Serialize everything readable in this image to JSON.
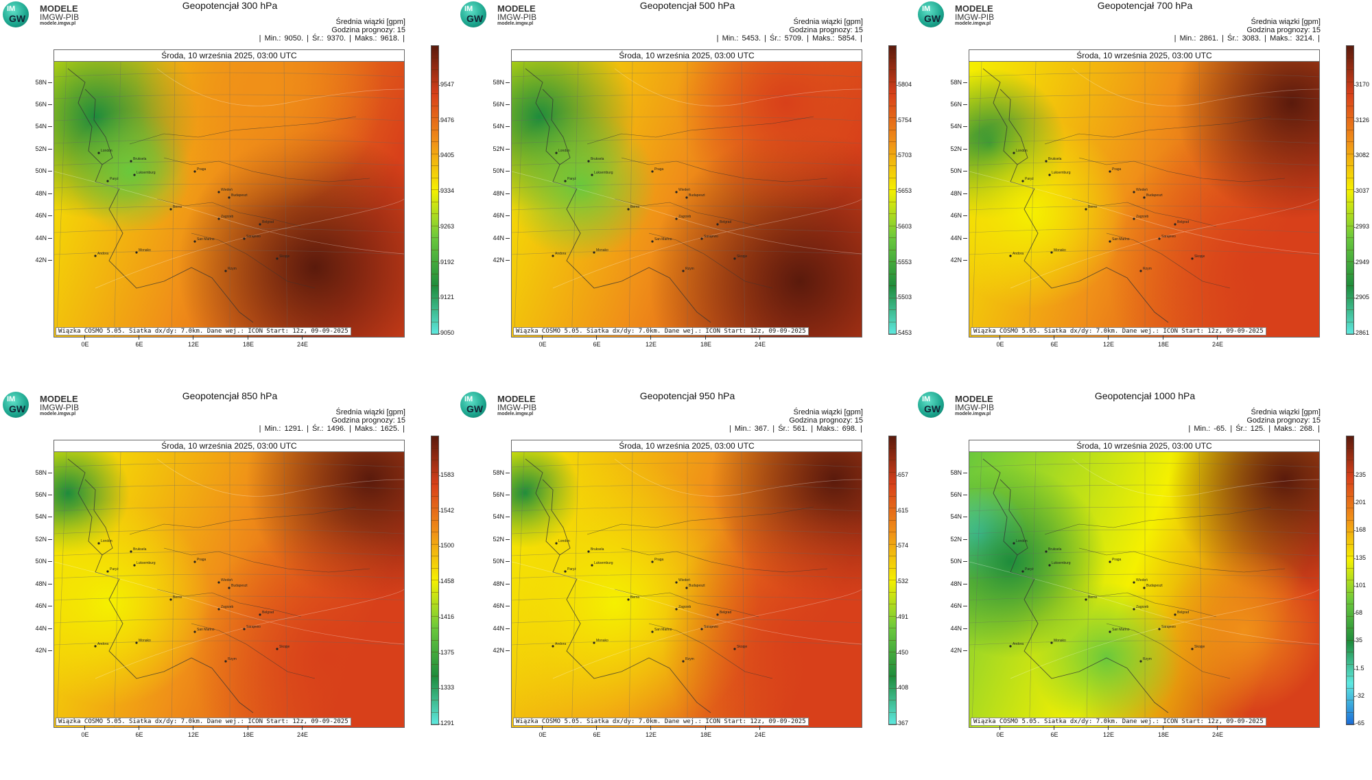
{
  "brand": "MODELE",
  "org": "IMGW-PIB",
  "url": "modele.imgw.pl",
  "logo_line1": "IM",
  "logo_line2": "GW",
  "units_label": "Średnia wiązki [gpm]",
  "forecast_hour_label": "Godzina prognozy: 15",
  "map_date": "Środa, 10 września 2025, 03:00 UTC",
  "footer": "Wiązka COSMO 5.05. Siatka dx/dy: 7.0km. Dane wej.: ICON Start: 12z, 09-09-2025",
  "lat_labels": [
    "58N",
    "56N",
    "54N",
    "52N",
    "50N",
    "48N",
    "46N",
    "44N",
    "42N"
  ],
  "lon_labels": [
    "0E",
    "6E",
    "12E",
    "18E",
    "24E"
  ],
  "cities": [
    "London",
    "Bruksela",
    "Paryż",
    "Luksemburg",
    "Praga",
    "Wiedeń",
    "Budapeszt",
    "Berno",
    "Zagrzeb",
    "Belgrad",
    "San Marino",
    "Sarajewo",
    "Skopje",
    "Andora",
    "Monako",
    "Rzym"
  ],
  "colors": {
    "cyan": "#5ee8e0",
    "green": "#1e8c3c",
    "lightgreen": "#6ac83c",
    "yellow": "#f5f000",
    "orange": "#f09018",
    "red": "#d8401a",
    "darkred": "#5a1a0c",
    "blue": "#1a6cd8"
  },
  "panels": [
    {
      "title": "Geopotencjał 300 hPa",
      "min": "9050.",
      "mean": "9370.",
      "max": "9618.",
      "colorbar": [
        "9547",
        "9476",
        "9405",
        "9334",
        "9263",
        "9192",
        "9121",
        "9050"
      ],
      "scheme": "standard"
    },
    {
      "title": "Geopotencjał 500 hPa",
      "min": "5453.",
      "mean": "5709.",
      "max": "5854.",
      "colorbar": [
        "5804",
        "5754",
        "5703",
        "5653",
        "5603",
        "5553",
        "5503",
        "5453"
      ],
      "scheme": "standard"
    },
    {
      "title": "Geopotencjał 700 hPa",
      "min": "2861.",
      "mean": "3083.",
      "max": "3214.",
      "colorbar": [
        "3170",
        "3126",
        "3082",
        "3037",
        "2993",
        "2949",
        "2905",
        "2861"
      ],
      "scheme": "standard"
    },
    {
      "title": "Geopotencjał 850 hPa",
      "min": "1291.",
      "mean": "1496.",
      "max": "1625.",
      "colorbar": [
        "1583",
        "1542",
        "1500",
        "1458",
        "1416",
        "1375",
        "1333",
        "1291"
      ],
      "scheme": "standard"
    },
    {
      "title": "Geopotencjał 950 hPa",
      "min": "367.",
      "mean": "561.",
      "max": "698.",
      "colorbar": [
        "657",
        "615",
        "574",
        "532",
        "491",
        "450",
        "408",
        "367"
      ],
      "scheme": "standard"
    },
    {
      "title": "Geopotencjał 1000 hPa",
      "min": "-65.",
      "mean": "125.",
      "max": "268.",
      "colorbar": [
        "235",
        "201",
        "168",
        "135",
        "101",
        "68",
        "35",
        "1.5",
        "-32",
        "-65"
      ],
      "scheme": "wide"
    }
  ]
}
